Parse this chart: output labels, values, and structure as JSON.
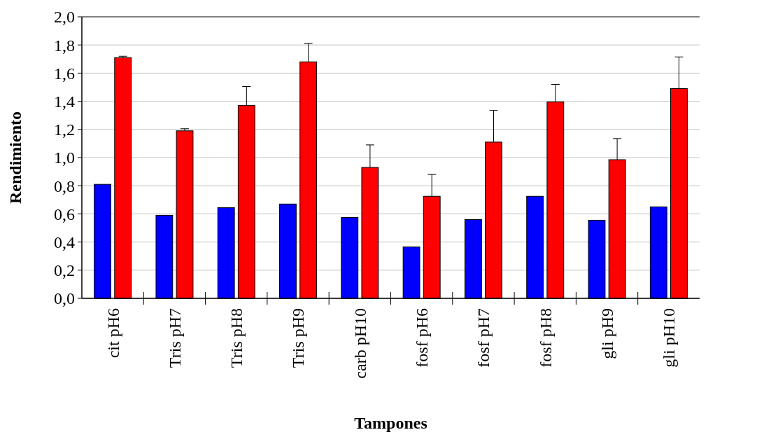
{
  "chart_data": {
    "type": "bar",
    "xlabel": "Tampones",
    "ylabel": "Rendimiento",
    "categories": [
      "cit pH6",
      "Tris pH7",
      "Tris pH8",
      "Tris pH9",
      "carb pH10",
      "fosf pH6",
      "fosf pH7",
      "fosf pH8",
      "gli pH9",
      "gli pH10"
    ],
    "series": [
      {
        "color": "#0000ff",
        "values": [
          0.81,
          0.59,
          0.645,
          0.67,
          0.575,
          0.365,
          0.56,
          0.725,
          0.555,
          0.65
        ]
      },
      {
        "color": "#ff0000",
        "values": [
          1.71,
          1.19,
          1.37,
          1.68,
          0.93,
          0.725,
          1.11,
          1.395,
          0.985,
          1.49
        ],
        "errors": [
          [
            1.71,
            1.72
          ],
          [
            1.19,
            1.205
          ],
          [
            1.37,
            1.505
          ],
          [
            1.68,
            1.81
          ],
          [
            0.93,
            1.09
          ],
          [
            0.725,
            0.88
          ],
          [
            1.11,
            1.335
          ],
          [
            1.395,
            1.52
          ],
          [
            0.985,
            1.135
          ],
          [
            1.49,
            1.715
          ]
        ]
      }
    ],
    "ylim": [
      0,
      2
    ],
    "yticks": [
      {
        "value": 0,
        "label": "0,0"
      },
      {
        "value": 0.2,
        "label": "0,2"
      },
      {
        "value": 0.4,
        "label": "0,4"
      },
      {
        "value": 0.6,
        "label": "0,6"
      },
      {
        "value": 0.8,
        "label": "0,8"
      },
      {
        "value": 1,
        "label": "1,0"
      },
      {
        "value": 1.2,
        "label": "1,2"
      },
      {
        "value": 1.4,
        "label": "1,4"
      },
      {
        "value": 1.6,
        "label": "1,6"
      },
      {
        "value": 1.8,
        "label": "1,8"
      },
      {
        "value": 2,
        "label": "2,0"
      }
    ],
    "grid": "y"
  }
}
